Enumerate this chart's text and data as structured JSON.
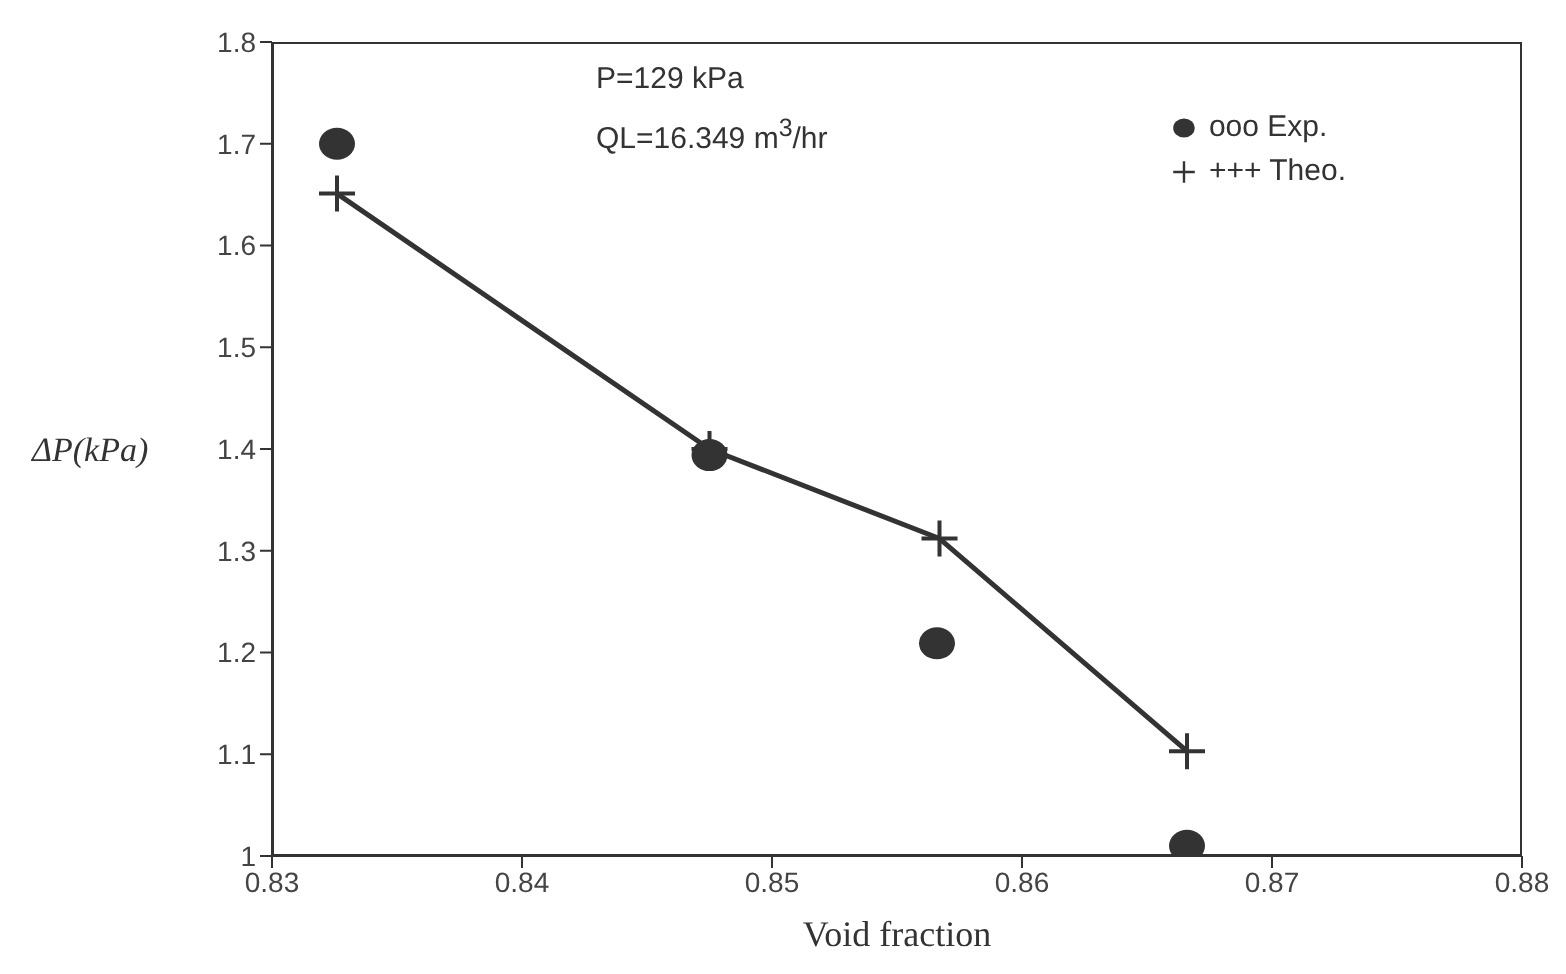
{
  "chart_data": {
    "type": "scatter",
    "xlabel": "Void fraction",
    "ylabel": "ΔP(kPa)",
    "annotations": [
      "P=129 kPa",
      "QL=16.349 m$^{3}$/hr"
    ],
    "xlim": [
      0.83,
      0.88
    ],
    "xticks": [
      0.83,
      0.84,
      0.85,
      0.86,
      0.87,
      0.88
    ],
    "ylim": [
      1,
      1.8
    ],
    "yticks": [
      1,
      1.1,
      1.2,
      1.3,
      1.4,
      1.5,
      1.6,
      1.7,
      1.8
    ],
    "grid": false,
    "legend": "top right",
    "series": [
      {
        "name": "ooo Exp.",
        "type": "scatter",
        "marker": "circle",
        "color": "#333333",
        "x": [
          0.8326,
          0.8475,
          0.8566,
          0.8666
        ],
        "values": [
          1.7,
          1.394,
          1.209,
          1.01
        ]
      },
      {
        "name": "+++ Theo.",
        "type": "line",
        "marker": "cross",
        "line_style": "solid",
        "color": "#333333",
        "x": [
          0.8326,
          0.8475,
          0.8567,
          0.8666
        ],
        "values": [
          1.651,
          1.4,
          1.312,
          1.103
        ]
      }
    ]
  }
}
